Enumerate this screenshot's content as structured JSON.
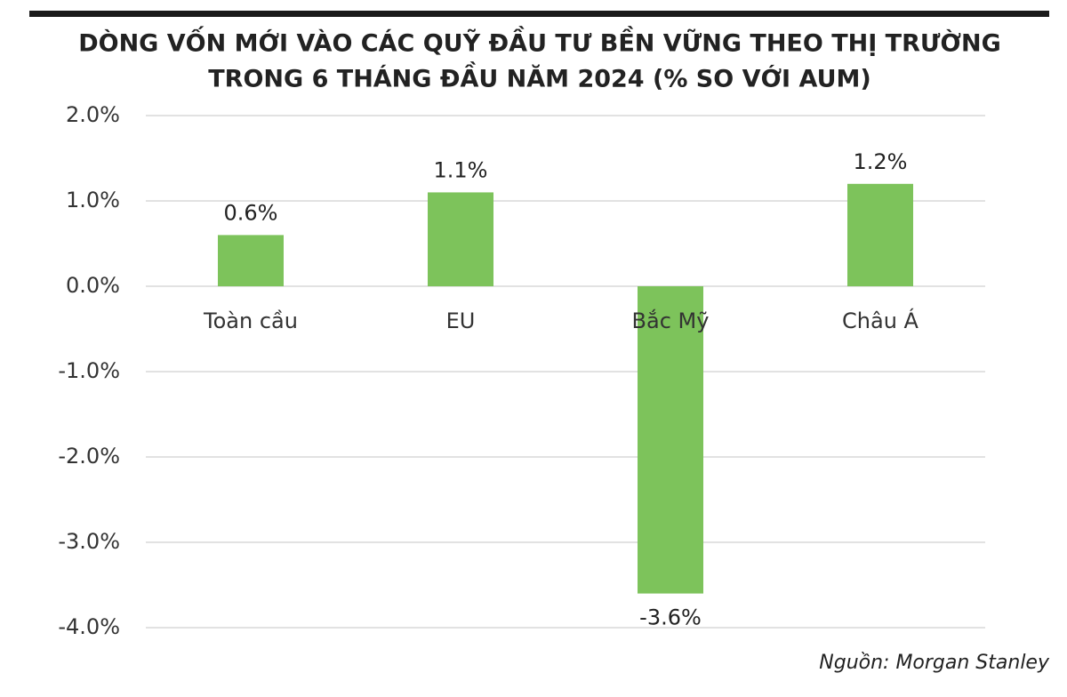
{
  "chart_data": {
    "type": "bar",
    "title": [
      "DÒNG VỐN MỚI VÀO CÁC QUỸ ĐẦU TƯ BỀN VỮNG THEO THỊ TRƯỜNG",
      "TRONG 6 THÁNG ĐẦU NĂM 2024 (% SO VỚI AUM)"
    ],
    "categories": [
      "Toàn cầu",
      "EU",
      "Bắc Mỹ",
      "Châu Á"
    ],
    "values": [
      0.6,
      1.1,
      -3.6,
      1.2
    ],
    "value_labels": [
      "0.6%",
      "1.1%",
      "-3.6%",
      "1.2%"
    ],
    "color": "#7dc35b",
    "ylim": [
      -4,
      2
    ],
    "yticks": [
      {
        "value": 2,
        "label": "2.0%"
      },
      {
        "value": 1,
        "label": "1.0%"
      },
      {
        "value": 0,
        "label": "0.0%"
      },
      {
        "value": -1,
        "label": "-1.0%"
      },
      {
        "value": -2,
        "label": "-2.0%"
      },
      {
        "value": -3,
        "label": "-3.0%"
      },
      {
        "value": -4,
        "label": "-4.0%"
      }
    ],
    "grid": true,
    "source": "Nguồn: Morgan Stanley"
  }
}
